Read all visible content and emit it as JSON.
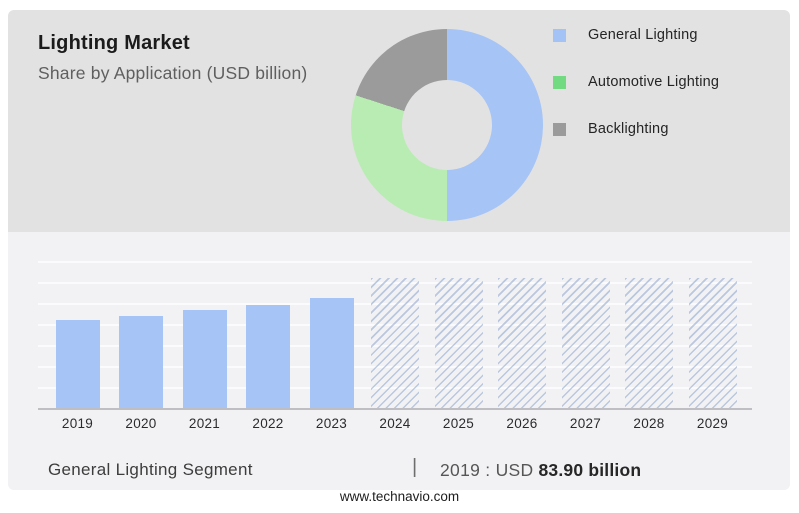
{
  "header": {
    "title": "Lighting Market",
    "subtitle": "Share by Application (USD billion)"
  },
  "legend": {
    "items": [
      {
        "label": "General Lighting",
        "color": "#a3c3f7"
      },
      {
        "label": "Automotive Lighting",
        "color": "#72da80"
      },
      {
        "label": "Backlighting",
        "color": "#9b9b9b"
      }
    ]
  },
  "chart_data": [
    {
      "type": "pie",
      "donut": true,
      "title": "Lighting Market — Share by Application (USD billion)",
      "slices": [
        {
          "label": "General Lighting",
          "percent": 50,
          "color": "#a6c4f6"
        },
        {
          "label": "Automotive Lighting",
          "percent": 30,
          "color": "#b8ecb2"
        },
        {
          "label": "Backlighting",
          "percent": 20,
          "color": "#9b9b9b"
        }
      ],
      "legend_position": "right"
    },
    {
      "type": "bar",
      "title": "General Lighting Segment (USD billion)",
      "categories": [
        "2019",
        "2020",
        "2021",
        "2022",
        "2023",
        "2024",
        "2025",
        "2026",
        "2027",
        "2028",
        "2029"
      ],
      "values": [
        83.9,
        88,
        93.5,
        98,
        105,
        null,
        null,
        null,
        null,
        null,
        null
      ],
      "forecast_categories": [
        "2024",
        "2025",
        "2026",
        "2027",
        "2028",
        "2029"
      ],
      "note": "2024-2029 shown as hatched forecast placeholders without labeled values",
      "xlabel": "",
      "ylabel": "",
      "ylim": [
        0,
        140
      ],
      "grid": true,
      "bar_color": "#a6c4f6"
    }
  ],
  "footer": {
    "segment_label": "General Lighting Segment",
    "separator": "|",
    "value_prefix": "2019 : USD",
    "value_bold": "83.90 billion",
    "website": "www.technavio.com"
  }
}
